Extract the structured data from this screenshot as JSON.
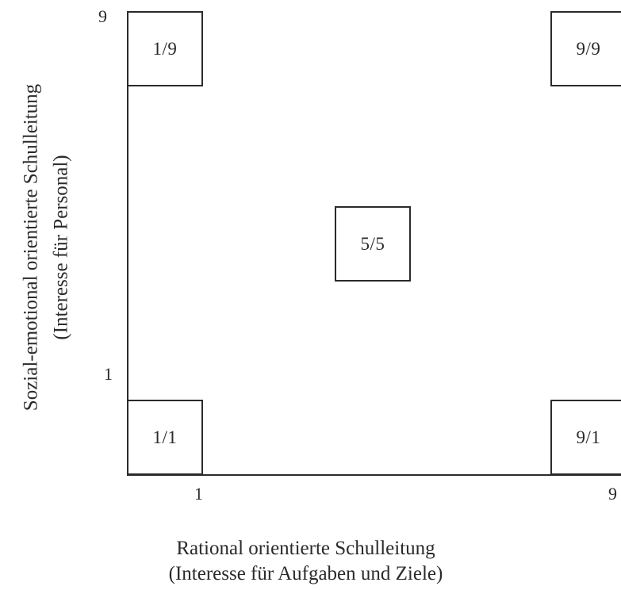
{
  "diagram": {
    "y_axis": {
      "label_line1": "Sozial-emotional orientierte Schulleitung",
      "label_line2": "(Interesse für Personal)",
      "tick_top": "9",
      "tick_bottom": "1"
    },
    "x_axis": {
      "label_line1": "Rational orientierte Schulleitung",
      "label_line2": "(Interesse für Aufgaben und Ziele)",
      "tick_left": "1",
      "tick_right": "9"
    },
    "cells": {
      "top_left": "1/9",
      "top_right": "9/9",
      "center": "5/5",
      "bottom_left": "1/1",
      "bottom_right": "9/1"
    }
  }
}
